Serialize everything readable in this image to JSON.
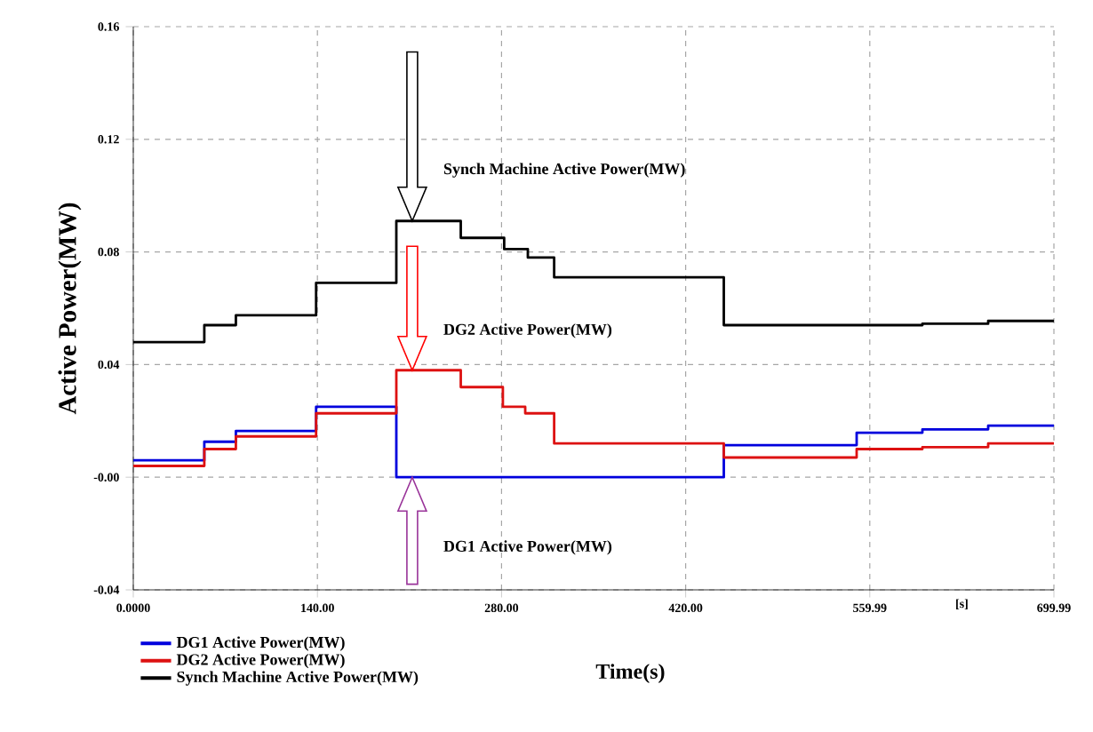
{
  "chart_data": {
    "type": "step",
    "xlabel": "Time(s)",
    "ylabel": "Active Power(MW)",
    "xlim": [
      0,
      699.99
    ],
    "ylim": [
      -0.04,
      0.16
    ],
    "xticks": [
      {
        "value": 0,
        "label": "0.0000"
      },
      {
        "value": 140,
        "label": "140.00"
      },
      {
        "value": 280,
        "label": "280.00"
      },
      {
        "value": 420,
        "label": "420.00"
      },
      559.99,
      699.99
    ],
    "yticks": [
      -0.04,
      {
        "value": 0,
        "label": "-0.00"
      },
      0.04,
      0.08,
      0.12,
      0.16
    ],
    "grid": true,
    "legend": "bottom left",
    "line_style": "solid",
    "series": [
      {
        "name": "DG1 Active Power(MW)",
        "color": "#0000dd",
        "x": [
          0,
          54,
          78,
          139,
          200,
          449,
          550,
          600,
          650,
          699.99
        ],
        "values": [
          0.006,
          0.0126,
          0.0164,
          0.025,
          0,
          0.0114,
          0.0158,
          0.017,
          0.0183,
          0.0183
        ]
      },
      {
        "name": "DG2 Active Power(MW)",
        "color": "#dd1111",
        "x": [
          0,
          54,
          78,
          139,
          200,
          249,
          281,
          298,
          320,
          449,
          550,
          600,
          650,
          699.99
        ],
        "values": [
          0.004,
          0.01,
          0.0145,
          0.0227,
          0.038,
          0.032,
          0.025,
          0.0227,
          0.012,
          0.007,
          0.01,
          0.0107,
          0.012,
          0.012
        ]
      },
      {
        "name": "Synch Machine Active Power(MW)",
        "color": "#000000",
        "x": [
          0,
          54,
          78,
          139,
          200,
          249,
          282,
          300,
          320,
          449,
          550,
          600,
          650,
          699.99
        ],
        "values": [
          0.048,
          0.054,
          0.0575,
          0.069,
          0.091,
          0.085,
          0.081,
          0.078,
          0.071,
          0.054,
          0.054,
          0.0545,
          0.0555,
          0.0555
        ]
      }
    ],
    "annotations": [
      "Synch Machine Active Power(MW)",
      "DG2 Active Power(MW)",
      "DG1 Active Power(MW)",
      "[s]"
    ]
  }
}
